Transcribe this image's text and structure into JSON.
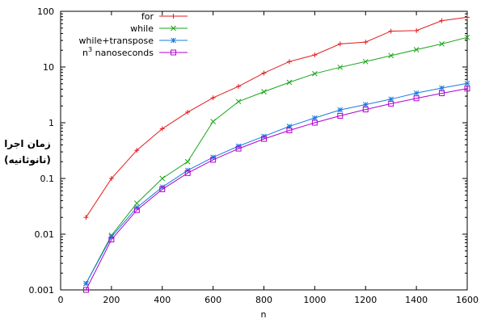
{
  "chart_data": {
    "type": "line",
    "title": "",
    "xlabel": "n",
    "ylabel_lines": [
      "زمان اجرا",
      "(نانوثانیه)"
    ],
    "xlim": [
      0,
      1600
    ],
    "ylim": [
      0.001,
      100
    ],
    "yscale": "log",
    "grid": false,
    "legend_position": "top-right",
    "x_ticks": [
      0,
      200,
      400,
      600,
      800,
      1000,
      1200,
      1400,
      1600
    ],
    "y_ticks": [
      0.001,
      0.01,
      0.1,
      1,
      10,
      100
    ],
    "x_tick_labels": [
      "0",
      "200",
      "400",
      "600",
      "800",
      "1000",
      "1200",
      "1400",
      "1600"
    ],
    "y_tick_labels": [
      "0.001",
      "0.01",
      "0.1",
      "1",
      "10",
      "100"
    ],
    "x": [
      100,
      200,
      300,
      400,
      500,
      600,
      700,
      800,
      900,
      1000,
      1100,
      1200,
      1300,
      1400,
      1500,
      1600
    ],
    "series": [
      {
        "name": "for",
        "color": "#e41a1c",
        "marker": "plus",
        "values": [
          0.02,
          0.1,
          0.32,
          0.78,
          1.55,
          2.8,
          4.5,
          7.8,
          12.5,
          16.5,
          26,
          28,
          44,
          45,
          68,
          78
        ]
      },
      {
        "name": "while",
        "color": "#1aa51a",
        "marker": "cross",
        "values": [
          0.0013,
          0.0095,
          0.036,
          0.1,
          0.2,
          1.05,
          2.4,
          3.6,
          5.3,
          7.6,
          9.9,
          12.5,
          16,
          20.5,
          26,
          34
        ]
      },
      {
        "name": "while+transpose",
        "color": "#1a7be0",
        "marker": "star",
        "values": [
          0.0013,
          0.009,
          0.03,
          0.07,
          0.14,
          0.24,
          0.38,
          0.57,
          0.86,
          1.22,
          1.7,
          2.12,
          2.65,
          3.4,
          4.2,
          5.1
        ]
      },
      {
        "name": "n³ nanoseconds",
        "name_base": "n",
        "name_sup": "3",
        "name_rest": " nanoseconds",
        "color": "#b000d0",
        "marker": "square",
        "values": [
          0.001,
          0.008,
          0.027,
          0.064,
          0.125,
          0.216,
          0.343,
          0.512,
          0.729,
          1.0,
          1.331,
          1.728,
          2.197,
          2.744,
          3.375,
          4.096
        ]
      }
    ]
  }
}
